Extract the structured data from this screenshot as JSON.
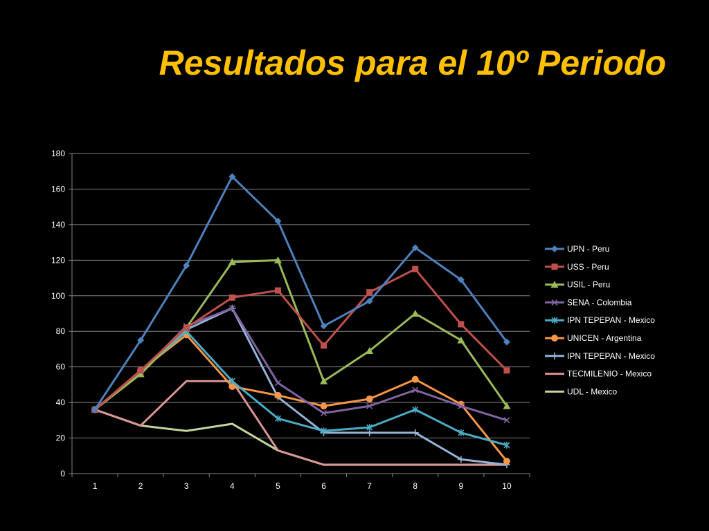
{
  "slide": {
    "title": "Resultados para el 10º Periodo"
  },
  "chart_data": {
    "type": "line",
    "title": "",
    "xlabel": "",
    "ylabel": "",
    "x": [
      1,
      2,
      3,
      4,
      5,
      6,
      7,
      8,
      9,
      10
    ],
    "ylim": [
      0,
      180
    ],
    "yticks": [
      0,
      20,
      40,
      60,
      80,
      100,
      120,
      140,
      160,
      180
    ],
    "grid": true,
    "legend_position": "right",
    "series": [
      {
        "name": "UPN - Peru",
        "color": "#4F81BD",
        "marker": "diamond",
        "values": [
          36,
          75,
          117,
          167,
          142,
          83,
          97,
          127,
          109,
          74
        ]
      },
      {
        "name": "USS - Peru",
        "color": "#C0504D",
        "marker": "square",
        "values": [
          36,
          58,
          82,
          99,
          103,
          72,
          102,
          115,
          84,
          58
        ]
      },
      {
        "name": "USIL - Peru",
        "color": "#9BBB59",
        "marker": "triangle",
        "values": [
          36,
          56,
          82,
          119,
          120,
          52,
          69,
          90,
          75,
          38
        ]
      },
      {
        "name": "SENA - Colombia",
        "color": "#8064A2",
        "marker": "x",
        "values": [
          36,
          57,
          83,
          93,
          51,
          34,
          38,
          47,
          38,
          30
        ]
      },
      {
        "name": "IPN TEPEPAN - Mexico",
        "color": "#4BACC6",
        "marker": "star",
        "values": [
          36,
          57,
          80,
          52,
          31,
          24,
          26,
          36,
          23,
          16
        ]
      },
      {
        "name": "UNICEN - Argentina",
        "color": "#F79646",
        "marker": "circle",
        "values": [
          36,
          58,
          78,
          49,
          44,
          38,
          42,
          53,
          39,
          7
        ]
      },
      {
        "name": "IPN TEPEPAN - Mexico",
        "color": "#95B3D7",
        "marker": "plus",
        "values": [
          36,
          57,
          81,
          93,
          43,
          23,
          23,
          23,
          8,
          5
        ]
      },
      {
        "name": "TECMILENIO - Mexico",
        "color": "#D99694",
        "marker": "none",
        "values": [
          36,
          27,
          52,
          52,
          13,
          5,
          5,
          5,
          5,
          5
        ]
      },
      {
        "name": "UDL - Mexico",
        "color": "#C3D69B",
        "marker": "none",
        "values": [
          36,
          27,
          24,
          28,
          13,
          5,
          5,
          5,
          5,
          5
        ]
      }
    ]
  }
}
